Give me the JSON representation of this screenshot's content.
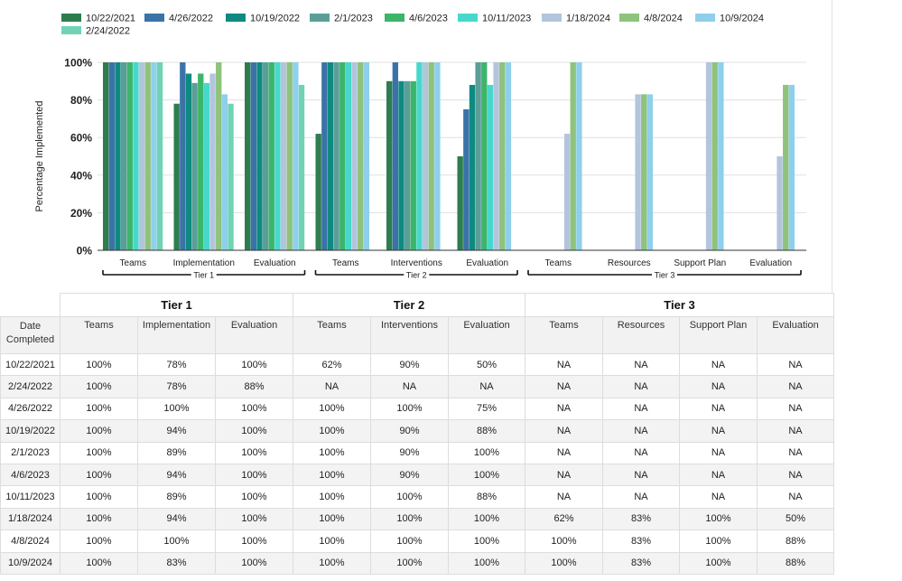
{
  "chart_data": {
    "type": "bar",
    "ylabel": "Percentage Implemented",
    "ylim": [
      0,
      100
    ],
    "yticks": [
      "0%",
      "20%",
      "40%",
      "60%",
      "80%",
      "100%"
    ],
    "grid": true,
    "legend_position": "top-left",
    "groups": [
      {
        "name": "Tier 1",
        "categories": [
          "Teams",
          "Implementation",
          "Evaluation"
        ]
      },
      {
        "name": "Tier 2",
        "categories": [
          "Teams",
          "Interventions",
          "Evaluation"
        ]
      },
      {
        "name": "Tier 3",
        "categories": [
          "Teams",
          "Resources",
          "Support Plan",
          "Evaluation"
        ]
      }
    ],
    "series": [
      {
        "name": "10/22/2021",
        "color": "#2e7d4f",
        "values": [
          100,
          78,
          100,
          62,
          90,
          50,
          null,
          null,
          null,
          null
        ]
      },
      {
        "name": "4/26/2022",
        "color": "#3b73a8",
        "values": [
          100,
          100,
          100,
          100,
          100,
          75,
          null,
          null,
          null,
          null
        ]
      },
      {
        "name": "10/19/2022",
        "color": "#0f8a80",
        "values": [
          100,
          94,
          100,
          100,
          90,
          88,
          null,
          null,
          null,
          null
        ]
      },
      {
        "name": "2/1/2023",
        "color": "#5b9e98",
        "values": [
          100,
          89,
          100,
          100,
          90,
          100,
          null,
          null,
          null,
          null
        ]
      },
      {
        "name": "4/6/2023",
        "color": "#3cb56a",
        "values": [
          100,
          94,
          100,
          100,
          90,
          100,
          null,
          null,
          null,
          null
        ]
      },
      {
        "name": "10/11/2023",
        "color": "#47d8cc",
        "values": [
          100,
          89,
          100,
          100,
          100,
          88,
          null,
          null,
          null,
          null
        ]
      },
      {
        "name": "1/18/2024",
        "color": "#b3c5dc",
        "values": [
          100,
          94,
          100,
          100,
          100,
          100,
          62,
          83,
          100,
          50
        ]
      },
      {
        "name": "4/8/2024",
        "color": "#8fc27c",
        "values": [
          100,
          100,
          100,
          100,
          100,
          100,
          100,
          83,
          100,
          88
        ]
      },
      {
        "name": "10/9/2024",
        "color": "#8ed0ec",
        "values": [
          100,
          83,
          100,
          100,
          100,
          100,
          100,
          83,
          100,
          88
        ]
      },
      {
        "name": "2/24/2022",
        "color": "#6fd3b4",
        "values": [
          100,
          78,
          88,
          null,
          null,
          null,
          null,
          null,
          null,
          null
        ]
      }
    ]
  },
  "table": {
    "tiers": [
      "Tier 1",
      "Tier 2",
      "Tier 3"
    ],
    "date_header": "Date Completed",
    "columns": [
      "Teams",
      "Implementation",
      "Evaluation",
      "Teams",
      "Interventions",
      "Evaluation",
      "Teams",
      "Resources",
      "Support Plan",
      "Evaluation"
    ],
    "rows": [
      [
        "10/22/2021",
        "100%",
        "78%",
        "100%",
        "62%",
        "90%",
        "50%",
        "NA",
        "NA",
        "NA",
        "NA"
      ],
      [
        "2/24/2022",
        "100%",
        "78%",
        "88%",
        "NA",
        "NA",
        "NA",
        "NA",
        "NA",
        "NA",
        "NA"
      ],
      [
        "4/26/2022",
        "100%",
        "100%",
        "100%",
        "100%",
        "100%",
        "75%",
        "NA",
        "NA",
        "NA",
        "NA"
      ],
      [
        "10/19/2022",
        "100%",
        "94%",
        "100%",
        "100%",
        "90%",
        "88%",
        "NA",
        "NA",
        "NA",
        "NA"
      ],
      [
        "2/1/2023",
        "100%",
        "89%",
        "100%",
        "100%",
        "90%",
        "100%",
        "NA",
        "NA",
        "NA",
        "NA"
      ],
      [
        "4/6/2023",
        "100%",
        "94%",
        "100%",
        "100%",
        "90%",
        "100%",
        "NA",
        "NA",
        "NA",
        "NA"
      ],
      [
        "10/11/2023",
        "100%",
        "89%",
        "100%",
        "100%",
        "100%",
        "88%",
        "NA",
        "NA",
        "NA",
        "NA"
      ],
      [
        "1/18/2024",
        "100%",
        "94%",
        "100%",
        "100%",
        "100%",
        "100%",
        "62%",
        "83%",
        "100%",
        "50%"
      ],
      [
        "4/8/2024",
        "100%",
        "100%",
        "100%",
        "100%",
        "100%",
        "100%",
        "100%",
        "83%",
        "100%",
        "88%"
      ],
      [
        "10/9/2024",
        "100%",
        "83%",
        "100%",
        "100%",
        "100%",
        "100%",
        "100%",
        "83%",
        "100%",
        "88%"
      ]
    ]
  }
}
